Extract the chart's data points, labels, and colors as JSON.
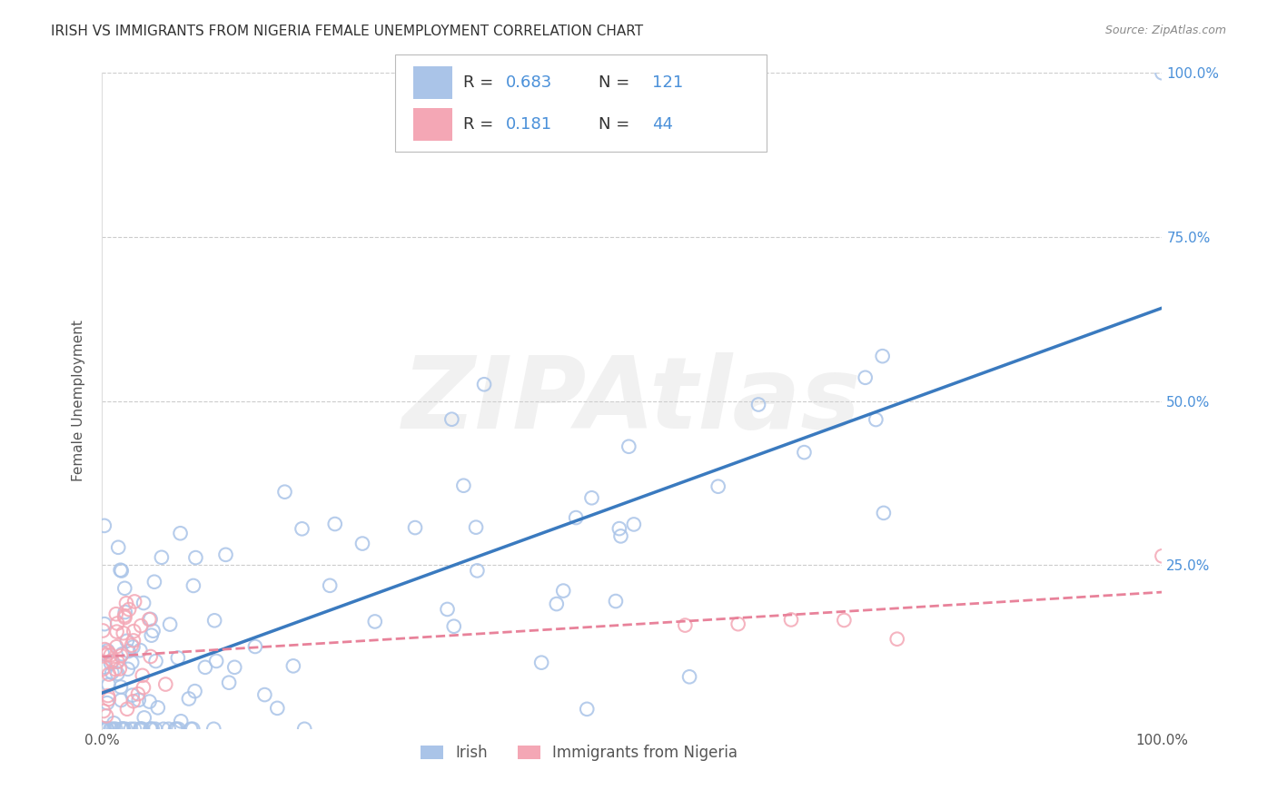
{
  "title": "IRISH VS IMMIGRANTS FROM NIGERIA FEMALE UNEMPLOYMENT CORRELATION CHART",
  "source": "Source: ZipAtlas.com",
  "ylabel": "Female Unemployment",
  "xlim": [
    0.0,
    1.0
  ],
  "ylim": [
    0.0,
    1.0
  ],
  "grid_color": "#cccccc",
  "watermark": "ZIPAtlas",
  "irish_color": "#aac4e8",
  "nigeria_color": "#f4a7b5",
  "irish_line_color": "#3a7abf",
  "nigeria_line_color": "#e8829a",
  "irish_R": 0.683,
  "irish_N": 121,
  "nigeria_R": 0.181,
  "nigeria_N": 44
}
